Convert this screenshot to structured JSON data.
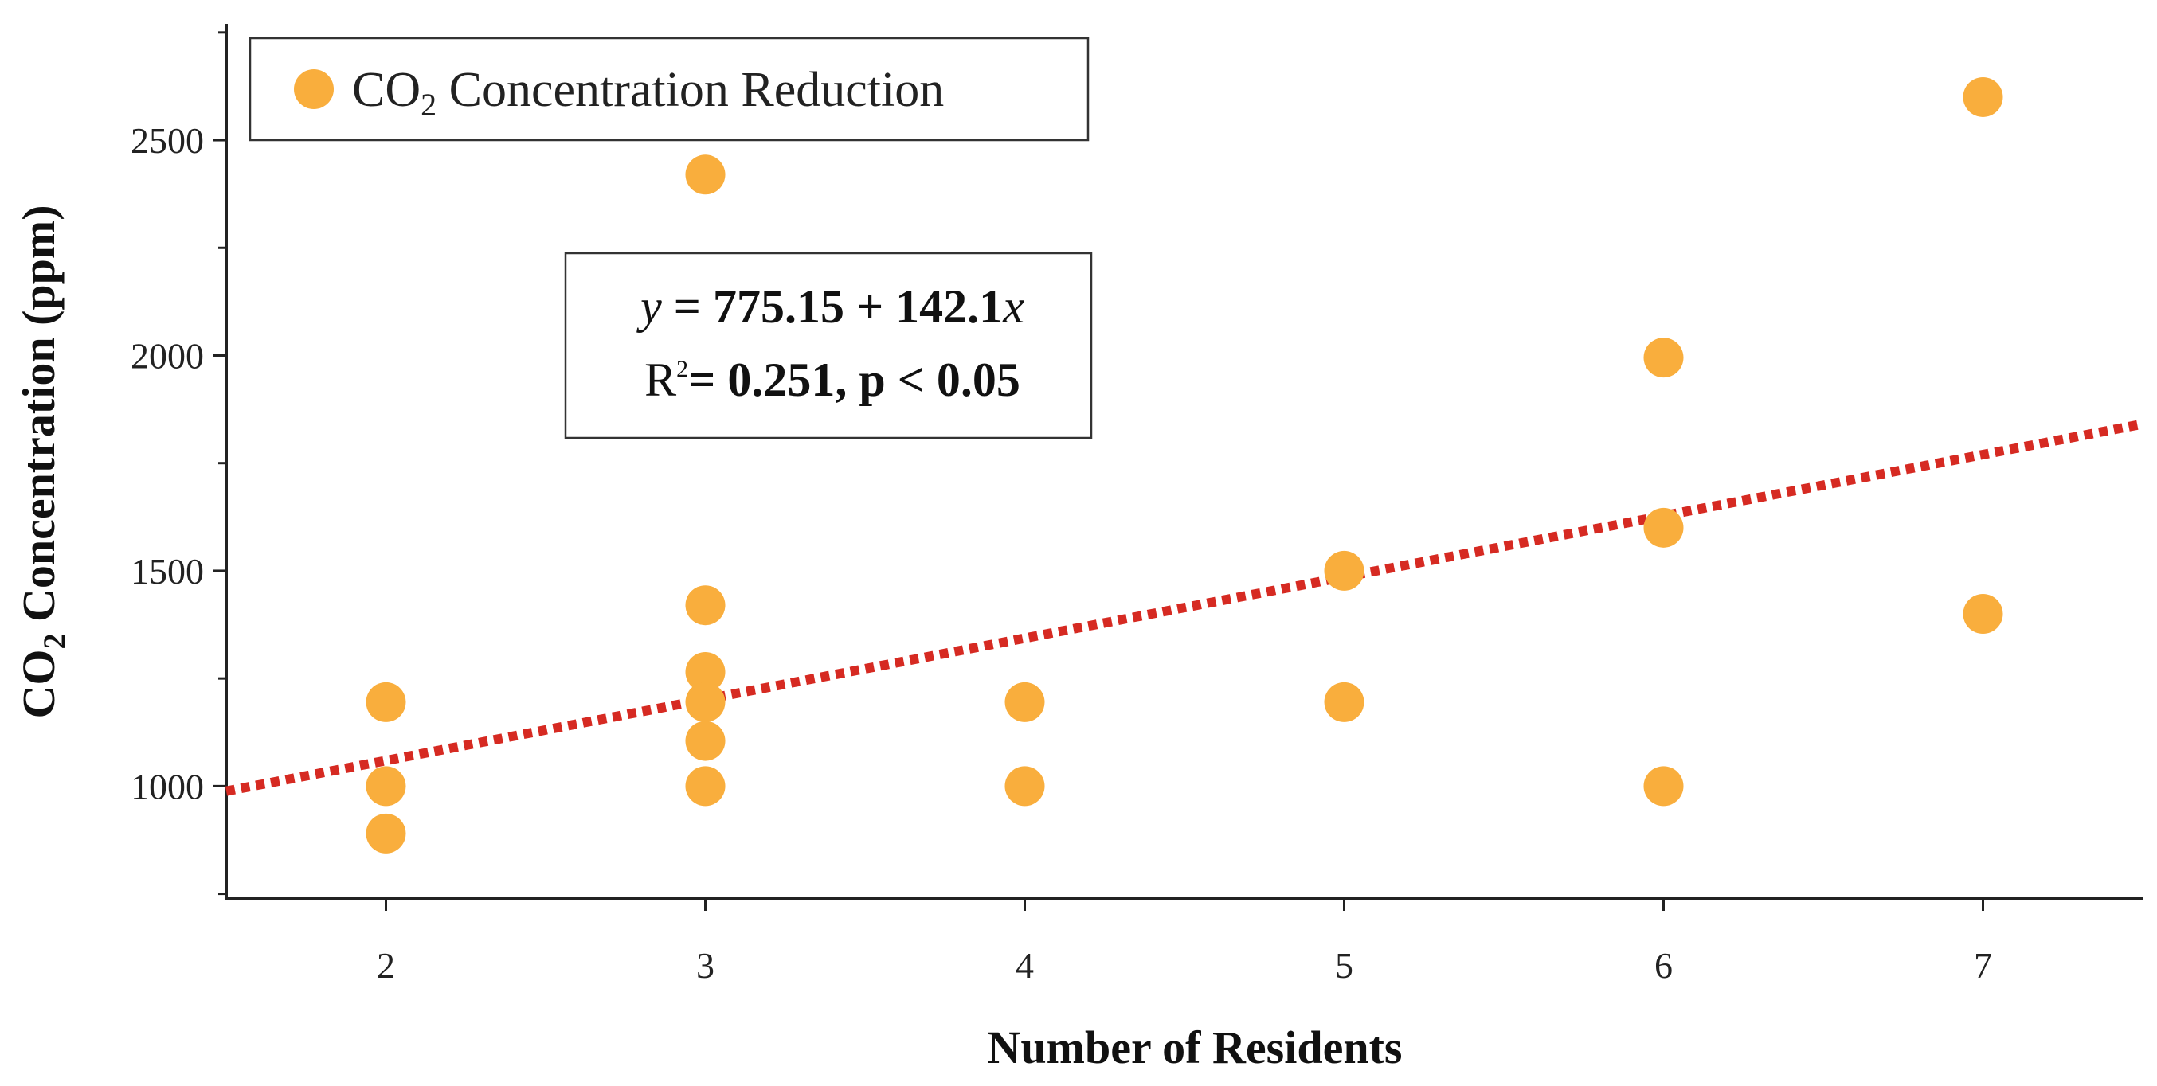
{
  "chart_data": {
    "type": "scatter",
    "title": "",
    "xlabel": "Number of Residents",
    "ylabel": {
      "prefix": "CO",
      "subscript": "2",
      "suffix": " Concentration (ppm)"
    },
    "xlim": [
      1.5,
      7.5
    ],
    "ylim": [
      740,
      2770
    ],
    "x_ticks": [
      2,
      3,
      4,
      5,
      6,
      7
    ],
    "y_ticks": [
      1000,
      1500,
      2000,
      2500
    ],
    "y_minor_ticks": [
      750,
      1250,
      1750,
      2250,
      2750
    ],
    "grid": false,
    "legend": {
      "placement": "top-left",
      "prefix": "CO",
      "subscript": "2",
      "suffix": " Concentration Reduction"
    },
    "series": [
      {
        "name": "CO2 Concentration Reduction",
        "color": "#F9AE3D",
        "points": [
          {
            "x": 2,
            "y": 1195
          },
          {
            "x": 2,
            "y": 1000
          },
          {
            "x": 2,
            "y": 890
          },
          {
            "x": 3,
            "y": 2420
          },
          {
            "x": 3,
            "y": 1420
          },
          {
            "x": 3,
            "y": 1265
          },
          {
            "x": 3,
            "y": 1195
          },
          {
            "x": 3,
            "y": 1105
          },
          {
            "x": 3,
            "y": 1000
          },
          {
            "x": 4,
            "y": 1195
          },
          {
            "x": 4,
            "y": 1000
          },
          {
            "x": 5,
            "y": 1500
          },
          {
            "x": 5,
            "y": 1195
          },
          {
            "x": 6,
            "y": 1995
          },
          {
            "x": 6,
            "y": 1600
          },
          {
            "x": 6,
            "y": 1000
          },
          {
            "x": 7,
            "y": 2600
          },
          {
            "x": 7,
            "y": 1400
          }
        ]
      }
    ],
    "trendline": {
      "intercept": 775.15,
      "slope": 142.1,
      "color": "#D62A22",
      "style": "dotted"
    },
    "annotation": {
      "line1_y": "y",
      "line1_eq": " = 775.15 + 142.1",
      "line1_x": "x",
      "line2_r": "R",
      "line2_sup": "2",
      "line2_rest": "= 0.251, p < 0.05"
    }
  }
}
